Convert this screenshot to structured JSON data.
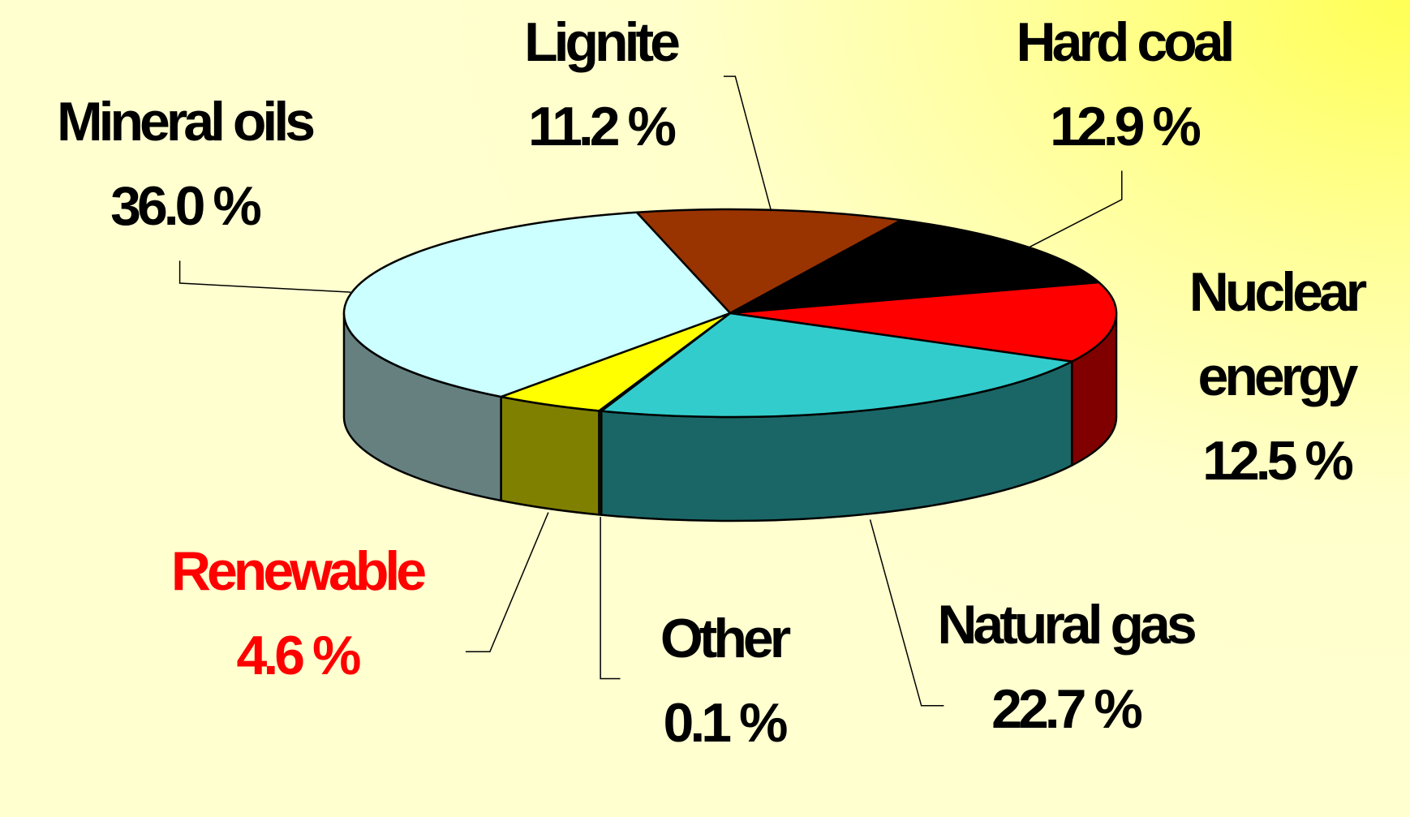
{
  "chart_data": {
    "type": "pie3d",
    "categories": [
      "Lignite",
      "Hard coal",
      "Nuclear energy",
      "Natural gas",
      "Other",
      "Renewable",
      "Mineral oils"
    ],
    "values": [
      11.2,
      12.9,
      12.5,
      22.7,
      0.1,
      4.6,
      36.0
    ],
    "value_labels": [
      "11.2 %",
      "12.9 %",
      "12.5 %",
      "22.7 %",
      "0.1 %",
      "4.6 %",
      "36.0 %"
    ],
    "colors": [
      "#993300",
      "#000000",
      "#FF0000",
      "#33CCCC",
      "#FFFF00",
      "#FFFF00",
      "#CCFFFF"
    ],
    "label_colors": [
      "#000000",
      "#000000",
      "#000000",
      "#000000",
      "#000000",
      "#FF0000",
      "#000000"
    ]
  }
}
